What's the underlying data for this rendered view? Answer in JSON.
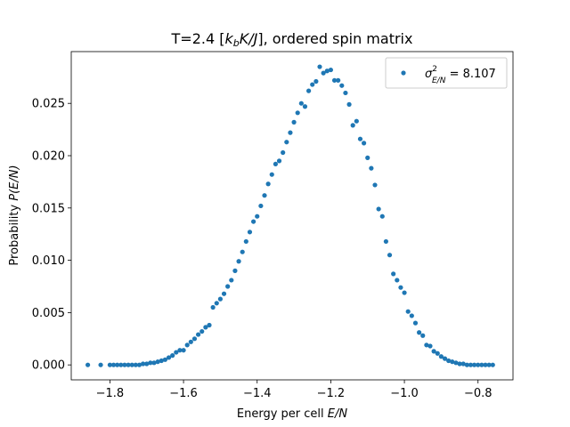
{
  "chart_data": {
    "type": "scatter",
    "title_parts": {
      "prefix": "T=2.4 [",
      "math": "k",
      "math_sub": "b",
      "math_rest": "K/J",
      "suffix": "], ordered spin matrix"
    },
    "xlabel_parts": {
      "text": "Energy per cell ",
      "math": "E/N"
    },
    "ylabel_parts": {
      "text": "Probability ",
      "math": "P(E/N)"
    },
    "xlim": [
      -1.905,
      -0.705
    ],
    "ylim": [
      -0.00143,
      0.02995
    ],
    "x_ticks": [
      -1.8,
      -1.6,
      -1.4,
      -1.2,
      -1.0,
      -0.8
    ],
    "x_tick_labels": [
      "−1.8",
      "−1.6",
      "−1.4",
      "−1.2",
      "−1.0",
      "−0.8"
    ],
    "y_ticks": [
      0.0,
      0.005,
      0.01,
      0.015,
      0.02,
      0.025
    ],
    "y_tick_labels": [
      "0.000",
      "0.005",
      "0.010",
      "0.015",
      "0.020",
      "0.025"
    ],
    "grid": false,
    "legend_placement": "top-right",
    "series": [
      {
        "name_parts": {
          "sigma": "σ",
          "sup": "2",
          "sub": "E/N",
          "rest": " = 8.107"
        },
        "color": "#1f77b4",
        "x": [
          -1.86,
          -1.825,
          -1.8,
          -1.79,
          -1.78,
          -1.77,
          -1.76,
          -1.75,
          -1.74,
          -1.73,
          -1.72,
          -1.71,
          -1.7,
          -1.69,
          -1.68,
          -1.67,
          -1.66,
          -1.65,
          -1.64,
          -1.63,
          -1.62,
          -1.61,
          -1.6,
          -1.59,
          -1.58,
          -1.57,
          -1.56,
          -1.55,
          -1.54,
          -1.53,
          -1.52,
          -1.51,
          -1.5,
          -1.49,
          -1.48,
          -1.47,
          -1.46,
          -1.45,
          -1.44,
          -1.43,
          -1.42,
          -1.41,
          -1.4,
          -1.39,
          -1.38,
          -1.37,
          -1.36,
          -1.35,
          -1.34,
          -1.33,
          -1.32,
          -1.31,
          -1.3,
          -1.29,
          -1.28,
          -1.27,
          -1.26,
          -1.25,
          -1.24,
          -1.23,
          -1.22,
          -1.21,
          -1.2,
          -1.19,
          -1.18,
          -1.17,
          -1.16,
          -1.15,
          -1.14,
          -1.13,
          -1.12,
          -1.11,
          -1.1,
          -1.09,
          -1.08,
          -1.07,
          -1.06,
          -1.05,
          -1.04,
          -1.03,
          -1.02,
          -1.01,
          -1.0,
          -0.99,
          -0.98,
          -0.97,
          -0.96,
          -0.95,
          -0.94,
          -0.93,
          -0.92,
          -0.91,
          -0.9,
          -0.89,
          -0.88,
          -0.87,
          -0.86,
          -0.85,
          -0.84,
          -0.83,
          -0.82,
          -0.81,
          -0.8,
          -0.79,
          -0.78,
          -0.77,
          -0.76
        ],
        "y": [
          0.0,
          0.0,
          0.0,
          0.0,
          0.0,
          0.0,
          0.0,
          0.0,
          0.0,
          0.0,
          0.0,
          0.0001,
          0.0001,
          0.0002,
          0.0002,
          0.0003,
          0.0004,
          0.0005,
          0.0007,
          0.0009,
          0.0012,
          0.0014,
          0.0014,
          0.0019,
          0.0022,
          0.0025,
          0.0029,
          0.0032,
          0.0036,
          0.0038,
          0.0055,
          0.0059,
          0.0063,
          0.0068,
          0.0075,
          0.0081,
          0.009,
          0.0099,
          0.0108,
          0.0118,
          0.0127,
          0.0137,
          0.0142,
          0.0152,
          0.0162,
          0.0173,
          0.0182,
          0.0192,
          0.0195,
          0.0203,
          0.0213,
          0.0222,
          0.0232,
          0.0241,
          0.025,
          0.0247,
          0.0262,
          0.0268,
          0.0271,
          0.0285,
          0.0279,
          0.0281,
          0.0282,
          0.0272,
          0.0272,
          0.0267,
          0.026,
          0.0249,
          0.0229,
          0.0233,
          0.0216,
          0.0212,
          0.0198,
          0.0188,
          0.0172,
          0.0149,
          0.0142,
          0.0118,
          0.0105,
          0.0087,
          0.0081,
          0.0074,
          0.0069,
          0.0051,
          0.0047,
          0.004,
          0.0031,
          0.0028,
          0.0019,
          0.0018,
          0.0013,
          0.0011,
          0.0008,
          0.0006,
          0.0004,
          0.0003,
          0.0002,
          0.0001,
          0.0001,
          0.0,
          0.0,
          0.0,
          0.0,
          0.0,
          0.0,
          0.0,
          0.0
        ]
      }
    ]
  }
}
